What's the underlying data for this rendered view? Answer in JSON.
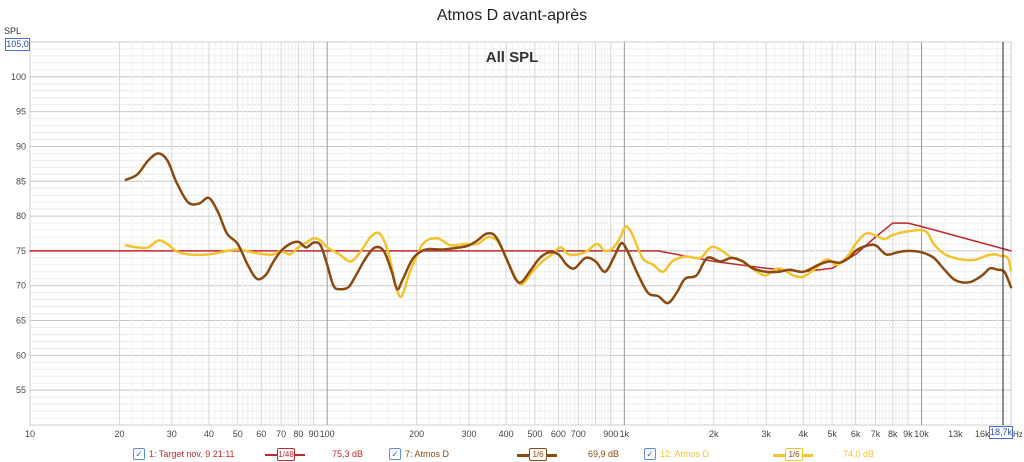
{
  "page_title": "Atmos D avant-après",
  "chart_data": {
    "type": "line",
    "title": "Atmos D avant-après",
    "subtitle": "All SPL",
    "ylabel": "SPL",
    "xunit": "Hz",
    "x_scale": "log",
    "xlim": [
      10,
      20000
    ],
    "ylim": [
      50,
      105
    ],
    "y_top_readout": "105,0",
    "x_right_readout": "18,7k",
    "y_ticks": [
      55,
      60,
      65,
      70,
      75,
      80,
      85,
      90,
      95,
      100
    ],
    "x_ticks": [
      {
        "v": 10,
        "label": "10"
      },
      {
        "v": 20,
        "label": "20"
      },
      {
        "v": 30,
        "label": "30"
      },
      {
        "v": 40,
        "label": "40"
      },
      {
        "v": 50,
        "label": "50"
      },
      {
        "v": 60,
        "label": "60"
      },
      {
        "v": 70,
        "label": "70"
      },
      {
        "v": 80,
        "label": "80"
      },
      {
        "v": 90,
        "label": "90"
      },
      {
        "v": 100,
        "label": "100"
      },
      {
        "v": 200,
        "label": "200"
      },
      {
        "v": 300,
        "label": "300"
      },
      {
        "v": 400,
        "label": "400"
      },
      {
        "v": 500,
        "label": "500"
      },
      {
        "v": 600,
        "label": "600"
      },
      {
        "v": 700,
        "label": "700"
      },
      {
        "v": 900,
        "label": "900"
      },
      {
        "v": 1000,
        "label": "1k"
      },
      {
        "v": 2000,
        "label": "2k"
      },
      {
        "v": 3000,
        "label": "3k"
      },
      {
        "v": 4000,
        "label": "4k"
      },
      {
        "v": 5000,
        "label": "5k"
      },
      {
        "v": 6000,
        "label": "6k"
      },
      {
        "v": 7000,
        "label": "7k"
      },
      {
        "v": 8000,
        "label": "8k"
      },
      {
        "v": 9000,
        "label": "9k"
      },
      {
        "v": 10000,
        "label": "10k"
      },
      {
        "v": 13000,
        "label": "13k"
      },
      {
        "v": 16000,
        "label": "16k"
      }
    ],
    "grid": true,
    "series": [
      {
        "name": "1: Target nov. 9 21:11",
        "color": "#c0282d",
        "width": 1.5,
        "points": [
          [
            10,
            75
          ],
          [
            1300,
            75
          ],
          [
            2000,
            73.5
          ],
          [
            3000,
            72.5
          ],
          [
            4000,
            72
          ],
          [
            5000,
            72.5
          ],
          [
            6000,
            74.5
          ],
          [
            7000,
            77
          ],
          [
            8000,
            79
          ],
          [
            9000,
            79
          ],
          [
            10000,
            78.5
          ],
          [
            20000,
            75
          ]
        ]
      },
      {
        "name": "7: Atmos D",
        "color": "#8b4a10",
        "width": 2.5,
        "points": [
          [
            21,
            85.2
          ],
          [
            23,
            86
          ],
          [
            25,
            88
          ],
          [
            27,
            89
          ],
          [
            29,
            88
          ],
          [
            31,
            85
          ],
          [
            34,
            82
          ],
          [
            37,
            81.8
          ],
          [
            40,
            82.6
          ],
          [
            43,
            80.5
          ],
          [
            46,
            77.5
          ],
          [
            50,
            76
          ],
          [
            54,
            73
          ],
          [
            58,
            71
          ],
          [
            62,
            71.5
          ],
          [
            66,
            73.5
          ],
          [
            70,
            75
          ],
          [
            75,
            76
          ],
          [
            80,
            76.3
          ],
          [
            85,
            75.5
          ],
          [
            90,
            76.2
          ],
          [
            95,
            75.8
          ],
          [
            100,
            73
          ],
          [
            105,
            70
          ],
          [
            110,
            69.5
          ],
          [
            118,
            69.8
          ],
          [
            125,
            71.5
          ],
          [
            135,
            74
          ],
          [
            145,
            75.5
          ],
          [
            155,
            75
          ],
          [
            165,
            72
          ],
          [
            172,
            69.5
          ],
          [
            180,
            71
          ],
          [
            195,
            74
          ],
          [
            215,
            75.2
          ],
          [
            245,
            75.2
          ],
          [
            280,
            75.5
          ],
          [
            300,
            75.8
          ],
          [
            320,
            76.5
          ],
          [
            345,
            77.5
          ],
          [
            370,
            77
          ],
          [
            400,
            74
          ],
          [
            430,
            71
          ],
          [
            450,
            70.5
          ],
          [
            480,
            72
          ],
          [
            520,
            74
          ],
          [
            560,
            74.8
          ],
          [
            600,
            74.5
          ],
          [
            640,
            73
          ],
          [
            680,
            72.5
          ],
          [
            740,
            74
          ],
          [
            800,
            73.5
          ],
          [
            860,
            72
          ],
          [
            920,
            74
          ],
          [
            970,
            76
          ],
          [
            1000,
            75.8
          ],
          [
            1050,
            74
          ],
          [
            1100,
            72
          ],
          [
            1200,
            69
          ],
          [
            1300,
            68.5
          ],
          [
            1400,
            67.5
          ],
          [
            1500,
            69
          ],
          [
            1600,
            71
          ],
          [
            1750,
            71.5
          ],
          [
            1900,
            74
          ],
          [
            2100,
            73.5
          ],
          [
            2300,
            74
          ],
          [
            2500,
            73.5
          ],
          [
            2700,
            72.5
          ],
          [
            3000,
            72
          ],
          [
            3300,
            72
          ],
          [
            3600,
            72.3
          ],
          [
            4000,
            72
          ],
          [
            4500,
            73
          ],
          [
            4900,
            73.5
          ],
          [
            5300,
            73.3
          ],
          [
            5700,
            74
          ],
          [
            6000,
            75
          ],
          [
            6500,
            75.7
          ],
          [
            7000,
            75.8
          ],
          [
            7600,
            74.5
          ],
          [
            8300,
            74.8
          ],
          [
            9000,
            75
          ],
          [
            10000,
            74.8
          ],
          [
            11000,
            74
          ],
          [
            12000,
            72.2
          ],
          [
            13000,
            70.8
          ],
          [
            14500,
            70.5
          ],
          [
            16000,
            71.5
          ],
          [
            17000,
            72.5
          ],
          [
            18000,
            72.3
          ],
          [
            19000,
            72
          ],
          [
            20000,
            69.8
          ]
        ]
      },
      {
        "name": "12: Atmos D",
        "color": "#f4c430",
        "width": 2.5,
        "points": [
          [
            21,
            75.8
          ],
          [
            23,
            75.5
          ],
          [
            25,
            75.5
          ],
          [
            27,
            76.5
          ],
          [
            29,
            76
          ],
          [
            31,
            75
          ],
          [
            34,
            74.5
          ],
          [
            40,
            74.5
          ],
          [
            46,
            75
          ],
          [
            50,
            75.2
          ],
          [
            56,
            74.8
          ],
          [
            62,
            74.5
          ],
          [
            66,
            74.5
          ],
          [
            70,
            75
          ],
          [
            75,
            74.5
          ],
          [
            80,
            75.5
          ],
          [
            85,
            76.2
          ],
          [
            90,
            76.8
          ],
          [
            95,
            76.5
          ],
          [
            100,
            75.5
          ],
          [
            110,
            74.5
          ],
          [
            120,
            73.5
          ],
          [
            130,
            75
          ],
          [
            140,
            77
          ],
          [
            150,
            77.5
          ],
          [
            160,
            75
          ],
          [
            170,
            70
          ],
          [
            178,
            68.5
          ],
          [
            190,
            72
          ],
          [
            210,
            76
          ],
          [
            235,
            76.8
          ],
          [
            260,
            75.8
          ],
          [
            290,
            76
          ],
          [
            320,
            76
          ],
          [
            350,
            77
          ],
          [
            380,
            76
          ],
          [
            420,
            72
          ],
          [
            450,
            70.2
          ],
          [
            490,
            72
          ],
          [
            530,
            73.5
          ],
          [
            570,
            74.5
          ],
          [
            610,
            75.5
          ],
          [
            650,
            74.5
          ],
          [
            700,
            74.5
          ],
          [
            750,
            75
          ],
          [
            810,
            76
          ],
          [
            860,
            75
          ],
          [
            920,
            75.5
          ],
          [
            970,
            77
          ],
          [
            1010,
            78.5
          ],
          [
            1060,
            77.5
          ],
          [
            1150,
            74
          ],
          [
            1250,
            73
          ],
          [
            1350,
            72
          ],
          [
            1450,
            73.5
          ],
          [
            1600,
            74.2
          ],
          [
            1800,
            74
          ],
          [
            1950,
            75.5
          ],
          [
            2100,
            75.2
          ],
          [
            2300,
            74
          ],
          [
            2500,
            73.5
          ],
          [
            2800,
            72
          ],
          [
            3000,
            71.5
          ],
          [
            3300,
            72.5
          ],
          [
            3700,
            71.5
          ],
          [
            4000,
            71.3
          ],
          [
            4400,
            72.5
          ],
          [
            4800,
            73.8
          ],
          [
            5200,
            73
          ],
          [
            5700,
            74.5
          ],
          [
            6000,
            76
          ],
          [
            6500,
            77.5
          ],
          [
            7000,
            77.2
          ],
          [
            7500,
            76.7
          ],
          [
            8000,
            77.3
          ],
          [
            9000,
            77.8
          ],
          [
            10000,
            78
          ],
          [
            10500,
            77.5
          ],
          [
            11000,
            76
          ],
          [
            12000,
            74.5
          ],
          [
            13500,
            73.8
          ],
          [
            15000,
            73.7
          ],
          [
            16500,
            74.3
          ],
          [
            17500,
            74.5
          ],
          [
            18500,
            74.3
          ],
          [
            19500,
            74
          ],
          [
            20000,
            72.2
          ]
        ]
      }
    ]
  },
  "legend": {
    "items": [
      {
        "label": "1: Target nov. 9 21:11",
        "color": "#c0282d",
        "smoothing": "1/48",
        "level": "75,3 dB",
        "checked": "✓"
      },
      {
        "label": "7: Atmos D",
        "color": "#8b4a10",
        "smoothing": "1/6",
        "level": "69,9 dB",
        "checked": "✓"
      },
      {
        "label": "12: Atmos D",
        "color": "#f4c430",
        "smoothing": "1/6",
        "level": "74,0 dB",
        "checked": "✓"
      }
    ]
  }
}
